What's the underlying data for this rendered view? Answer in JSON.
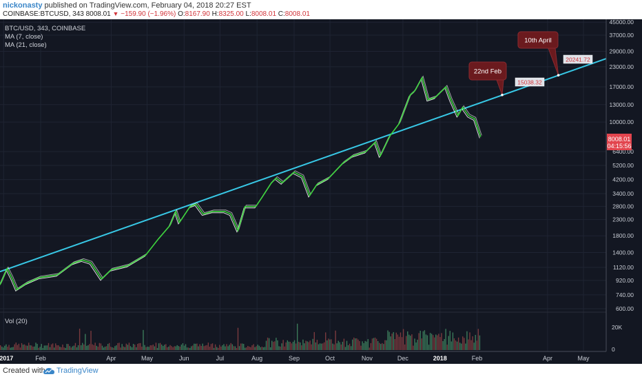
{
  "header": {
    "author": "nickonasty",
    "published": "published on TradingView.com, February 04, 2018 20:27 EST",
    "symbol": "COINBASE:BTCUSD, 343",
    "last": "8008.01",
    "change": "−159.90 (−1.96%)",
    "o_label": "O:",
    "o_value": "8167.90",
    "h_label": "H:",
    "h_value": "8325.00",
    "l_label": "L:",
    "l_value": "8008.01",
    "c_label": "C:",
    "c_value": "8008.01"
  },
  "legend": {
    "symbol": "BTC/USD, 343, COINBASE",
    "ma1": "MA (7, close)",
    "ma2": "MA (21, close)",
    "vol": "Vol (20)"
  },
  "annotations": {
    "callout1": "22nd Feb",
    "callout2": "10th April",
    "tag1": "15038.32",
    "tag2": "20241.72"
  },
  "price_tag": {
    "value": "8008.01",
    "countdown": "04:15:56"
  },
  "footer": {
    "created": "Created with",
    "brand": "TradingView"
  },
  "colors": {
    "background": "#131722",
    "trendline": "#38c8e6",
    "price_line": "#3cd43c",
    "ma_line": "#ffffff",
    "callout": "#6b1a1e",
    "price_tag": "#e2454e",
    "vol_up": "#3b7a5a",
    "vol_down": "#7a3a3e"
  },
  "chart_data": {
    "type": "line",
    "title": "BTC/USD, 343, COINBASE",
    "y_scale": "log",
    "y_ticks": [
      45000,
      37000,
      29000,
      23000,
      17000,
      13000,
      10000,
      6400,
      5200,
      4200,
      3400,
      2800,
      2300,
      1800,
      1400,
      1120,
      920,
      740,
      600
    ],
    "y_tick_labels": [
      "45000.00",
      "37000.00",
      "29000.00",
      "23000.00",
      "17000.00",
      "13000.00",
      "10000.00",
      "6400.00",
      "5200.00",
      "4200.00",
      "3400.00",
      "2800.00",
      "2300.00",
      "1800.00",
      "1400.00",
      "1120.00",
      "920.00",
      "740.00",
      "600.00"
    ],
    "x_tick_labels": [
      "2017",
      "Feb",
      "Apr",
      "May",
      "Jun",
      "Jul",
      "Aug",
      "Sep",
      "Oct",
      "Nov",
      "Dec",
      "2018",
      "Feb",
      "Apr",
      "May"
    ],
    "x_tick_dates": [
      "2017-01-01",
      "2017-02-01",
      "2017-04-01",
      "2017-05-01",
      "2017-06-01",
      "2017-07-01",
      "2017-08-01",
      "2017-09-01",
      "2017-10-01",
      "2017-11-01",
      "2017-12-01",
      "2018-01-01",
      "2018-02-01",
      "2018-04-01",
      "2018-05-01"
    ],
    "x_range": [
      "2016-12-29",
      "2018-05-20"
    ],
    "y_range": [
      570,
      47000
    ],
    "price_series": [
      [
        "2016-12-29",
        860
      ],
      [
        "2017-01-04",
        1100
      ],
      [
        "2017-01-08",
        950
      ],
      [
        "2017-01-12",
        800
      ],
      [
        "2017-01-20",
        880
      ],
      [
        "2017-01-31",
        960
      ],
      [
        "2017-02-15",
        1000
      ],
      [
        "2017-02-28",
        1190
      ],
      [
        "2017-03-08",
        1250
      ],
      [
        "2017-03-15",
        1200
      ],
      [
        "2017-03-24",
        940
      ],
      [
        "2017-04-01",
        1080
      ],
      [
        "2017-04-15",
        1150
      ],
      [
        "2017-04-30",
        1350
      ],
      [
        "2017-05-10",
        1700
      ],
      [
        "2017-05-20",
        2100
      ],
      [
        "2017-05-25",
        2600
      ],
      [
        "2017-05-28",
        2200
      ],
      [
        "2017-06-06",
        2800
      ],
      [
        "2017-06-11",
        2900
      ],
      [
        "2017-06-17",
        2500
      ],
      [
        "2017-06-25",
        2600
      ],
      [
        "2017-07-05",
        2600
      ],
      [
        "2017-07-10",
        2500
      ],
      [
        "2017-07-16",
        1950
      ],
      [
        "2017-07-22",
        2800
      ],
      [
        "2017-07-31",
        2800
      ],
      [
        "2017-08-05",
        3200
      ],
      [
        "2017-08-13",
        4000
      ],
      [
        "2017-08-17",
        4300
      ],
      [
        "2017-08-22",
        4000
      ],
      [
        "2017-09-01",
        4700
      ],
      [
        "2017-09-08",
        4400
      ],
      [
        "2017-09-14",
        3300
      ],
      [
        "2017-09-20",
        3900
      ],
      [
        "2017-09-30",
        4300
      ],
      [
        "2017-10-12",
        5400
      ],
      [
        "2017-10-20",
        6000
      ],
      [
        "2017-10-31",
        6400
      ],
      [
        "2017-11-08",
        7400
      ],
      [
        "2017-11-12",
        6000
      ],
      [
        "2017-11-20",
        8100
      ],
      [
        "2017-11-28",
        9800
      ],
      [
        "2017-12-07",
        15000
      ],
      [
        "2017-12-11",
        16000
      ],
      [
        "2017-12-17",
        19500
      ],
      [
        "2017-12-22",
        14000
      ],
      [
        "2017-12-28",
        14500
      ],
      [
        "2018-01-06",
        17000
      ],
      [
        "2018-01-10",
        14000
      ],
      [
        "2018-01-16",
        11000
      ],
      [
        "2018-01-20",
        12500
      ],
      [
        "2018-01-25",
        11000
      ],
      [
        "2018-01-30",
        10500
      ],
      [
        "2018-02-04",
        8008.01
      ]
    ],
    "trendline": {
      "start": [
        "2016-12-29",
        1050
      ],
      "end": [
        "2018-05-20",
        26000
      ]
    },
    "callouts": [
      {
        "label": "22nd Feb",
        "date": "2018-02-22",
        "value": 15038.32
      },
      {
        "label": "10th April",
        "date": "2018-04-10",
        "value": 20241.72
      }
    ],
    "volume": {
      "label": "Vol (20)",
      "ticks": [
        20000,
        0
      ],
      "tick_labels": [
        "20K",
        "0"
      ]
    }
  }
}
